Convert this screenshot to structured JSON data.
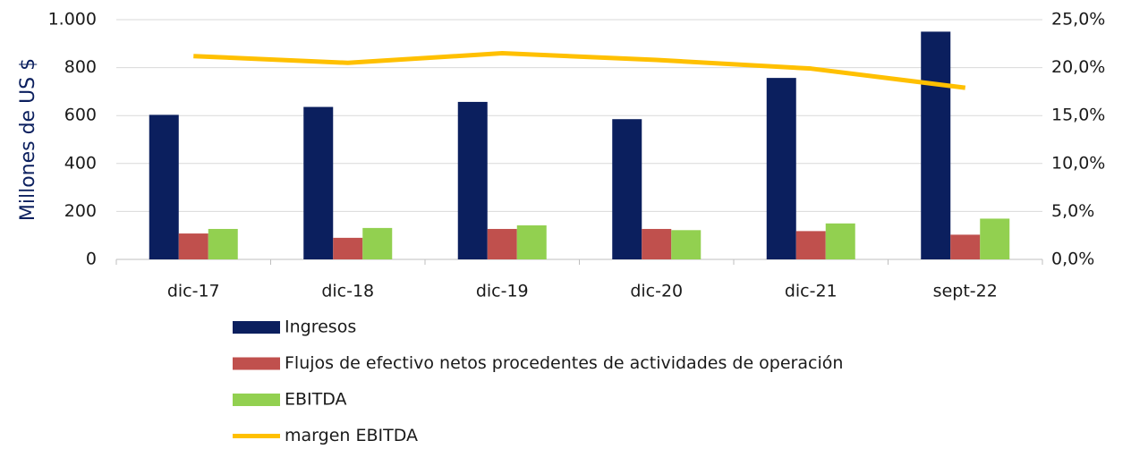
{
  "chart_data": {
    "type": "bar",
    "ylabel": "Millones de US $",
    "categories": [
      "dic-17",
      "dic-18",
      "dic-19",
      "dic-20",
      "dic-21",
      "sept-22"
    ],
    "series": [
      {
        "name": "Ingresos",
        "color": "#0b1f5e",
        "type": "bar",
        "values": [
          603,
          636,
          657,
          585,
          757,
          950
        ]
      },
      {
        "name": "Flujos de efectivo netos procedentes de actividades de operación",
        "color": "#c0504d",
        "type": "bar",
        "values": [
          108,
          90,
          127,
          127,
          118,
          103
        ]
      },
      {
        "name": "EBITDA",
        "color": "#92d050",
        "type": "bar",
        "values": [
          127,
          131,
          142,
          122,
          150,
          170
        ]
      },
      {
        "name": "margen EBITDA",
        "color": "#ffc000",
        "type": "line",
        "axis": "y2",
        "values": [
          21.2,
          20.5,
          21.5,
          20.8,
          19.9,
          17.9
        ]
      }
    ],
    "ylim": [
      0,
      1000
    ],
    "yticks": [
      0,
      200,
      400,
      600,
      800,
      {
        "value": 1000,
        "label": "1.000"
      }
    ],
    "y2lim": [
      0,
      25
    ],
    "y2ticks": [
      {
        "value": 0,
        "label": "0,0%"
      },
      {
        "value": 5,
        "label": "5,0%"
      },
      {
        "value": 10,
        "label": "10,0%"
      },
      {
        "value": 15,
        "label": "15,0%"
      },
      {
        "value": 20,
        "label": "20,0%"
      },
      {
        "value": 25,
        "label": "25,0%"
      }
    ],
    "grid": true,
    "legend": "bottom"
  }
}
